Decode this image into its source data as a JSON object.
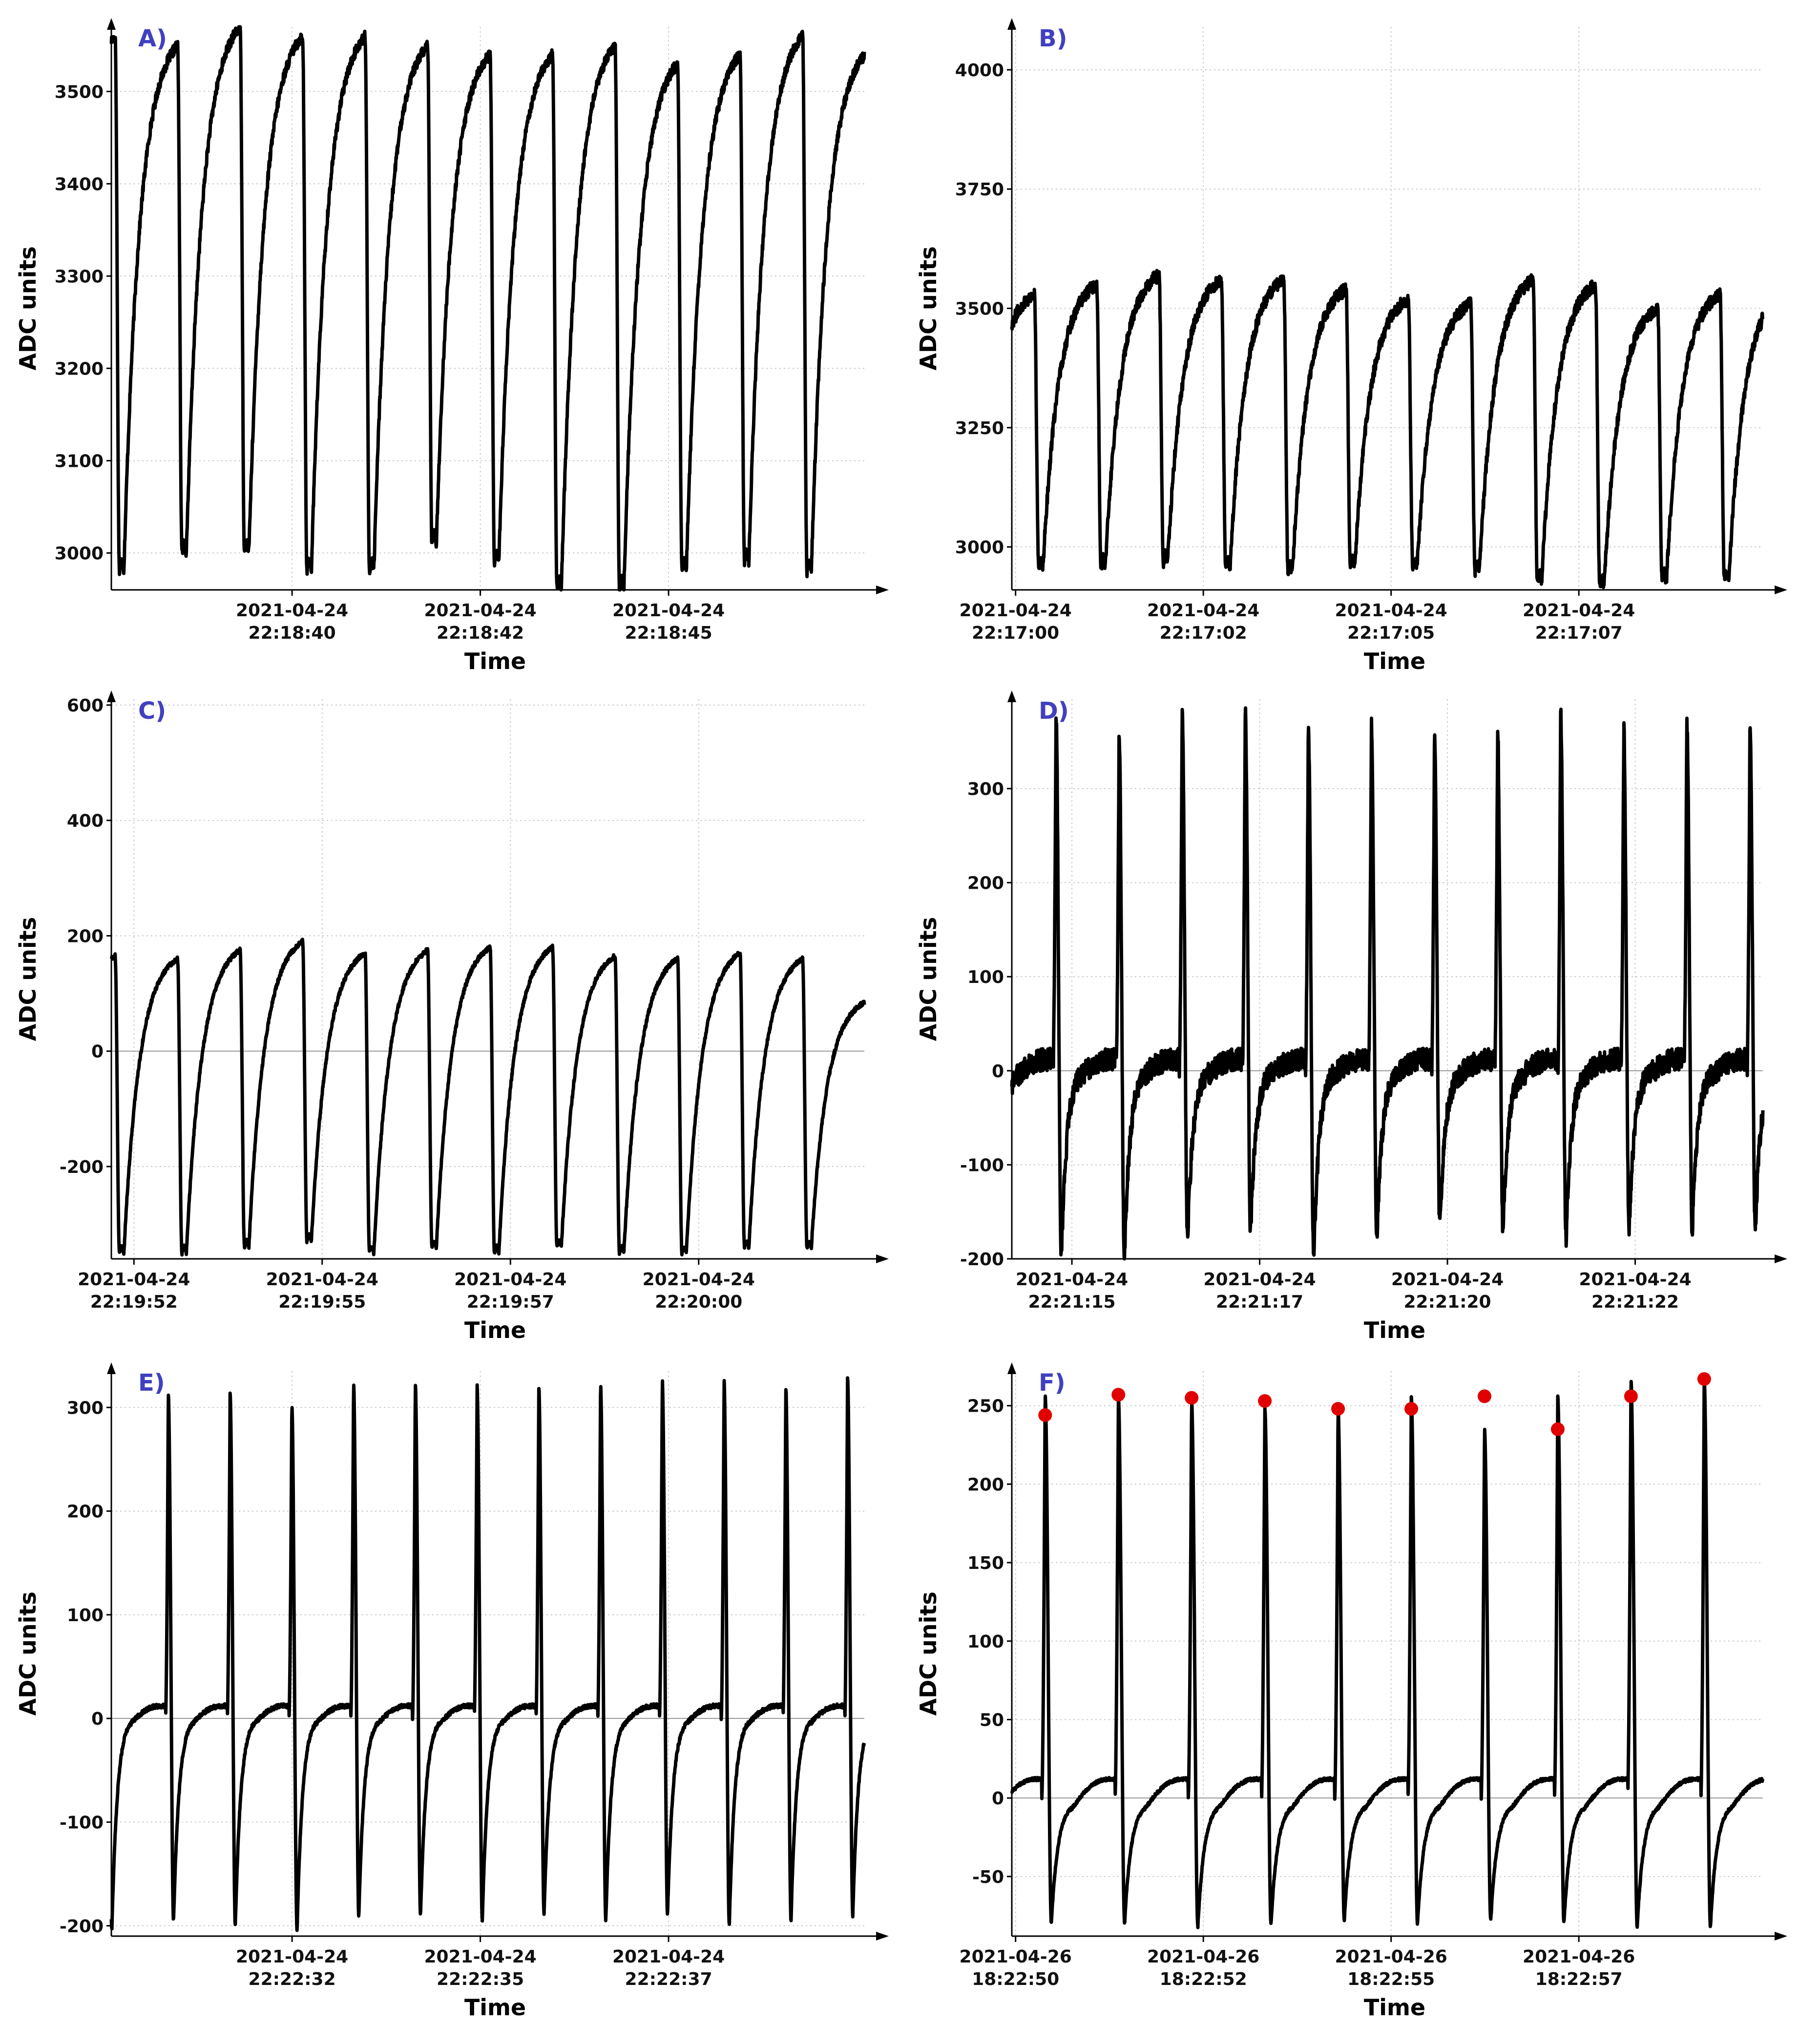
{
  "figure": {
    "background": "#ffffff"
  },
  "style": {
    "line_color": "#000000",
    "grid_color": "#c8c8c8",
    "zero_line_color": "#9a9a9a",
    "axis_color": "#000000",
    "letter_color": "#4040c0",
    "peak_marker_color": "#e00000"
  },
  "chart_data": [
    {
      "id": "A",
      "type": "line",
      "panel_label": "A)",
      "xlabel": "Time",
      "ylabel": "ADC units",
      "ylim": [
        2960,
        3570
      ],
      "xlim": [
        0,
        10.0
      ],
      "yticks": [
        3000,
        3100,
        3200,
        3300,
        3400,
        3500
      ],
      "xticks": [
        {
          "x": 2.4,
          "date": "2021-04-24",
          "time": "22:18:40"
        },
        {
          "x": 4.9,
          "date": "2021-04-24",
          "time": "22:18:42"
        },
        {
          "x": 7.4,
          "date": "2021-04-24",
          "time": "22:18:45"
        }
      ],
      "waveform": "sawtooth",
      "period": 0.83,
      "phase": 0.05,
      "noise": 6,
      "peaks": [
        3560,
        3550,
        3570,
        3560,
        3560,
        3550,
        3540,
        3540,
        3550,
        3530,
        3540,
        3560,
        3540
      ],
      "troughs": [
        2990,
        2980,
        3000,
        3000,
        2980,
        2980,
        3010,
        2990,
        2960,
        2960,
        2980,
        2990,
        2980
      ],
      "zero_line": false
    },
    {
      "id": "B",
      "type": "line",
      "panel_label": "B)",
      "xlabel": "Time",
      "ylabel": "ADC units",
      "ylim": [
        2910,
        4090
      ],
      "xlim": [
        0,
        10.0
      ],
      "yticks": [
        3000,
        3250,
        3500,
        3750,
        4000
      ],
      "xticks": [
        {
          "x": 0.05,
          "date": "2021-04-24",
          "time": "22:17:00"
        },
        {
          "x": 2.55,
          "date": "2021-04-24",
          "time": "22:17:02"
        },
        {
          "x": 5.05,
          "date": "2021-04-24",
          "time": "22:17:05"
        },
        {
          "x": 7.55,
          "date": "2021-04-24",
          "time": "22:17:07"
        }
      ],
      "waveform": "sawtooth",
      "period": 0.83,
      "phase": 0.3,
      "noise": 14,
      "peaks": [
        3530,
        3550,
        3570,
        3560,
        3560,
        3540,
        3520,
        3510,
        3560,
        3550,
        3500,
        3530
      ],
      "troughs": [
        2950,
        2960,
        2960,
        2970,
        2960,
        2950,
        2960,
        2960,
        2950,
        2930,
        2920,
        2930
      ],
      "zero_line": false
    },
    {
      "id": "C",
      "type": "line",
      "panel_label": "C)",
      "xlabel": "Time",
      "ylabel": "ADC units",
      "ylim": [
        -360,
        610
      ],
      "xlim": [
        0,
        10.0
      ],
      "yticks": [
        -200,
        0,
        200,
        400,
        600
      ],
      "xticks": [
        {
          "x": 0.3,
          "date": "2021-04-24",
          "time": "22:19:52"
        },
        {
          "x": 2.8,
          "date": "2021-04-24",
          "time": "22:19:55"
        },
        {
          "x": 5.3,
          "date": "2021-04-24",
          "time": "22:19:57"
        },
        {
          "x": 7.8,
          "date": "2021-04-24",
          "time": "22:20:00"
        }
      ],
      "waveform": "sawtooth",
      "period": 0.83,
      "phase": 0.05,
      "noise": 4,
      "peaks": [
        165,
        160,
        175,
        190,
        170,
        175,
        180,
        180,
        165,
        160,
        170,
        160,
        85
      ],
      "troughs": [
        -330,
        -350,
        -350,
        -340,
        -330,
        -350,
        -340,
        -350,
        -340,
        -350,
        -350,
        -340,
        -340
      ],
      "zero_line": true
    },
    {
      "id": "D",
      "type": "line",
      "panel_label": "D)",
      "xlabel": "Time",
      "ylabel": "ADC units",
      "ylim": [
        -200,
        395
      ],
      "xlim": [
        0,
        10.0
      ],
      "yticks": [
        -200,
        -100,
        0,
        100,
        200,
        300
      ],
      "xticks": [
        {
          "x": 0.8,
          "date": "2021-04-24",
          "time": "22:21:15"
        },
        {
          "x": 3.3,
          "date": "2021-04-24",
          "time": "22:21:17"
        },
        {
          "x": 5.8,
          "date": "2021-04-24",
          "time": "22:21:20"
        },
        {
          "x": 8.3,
          "date": "2021-04-24",
          "time": "22:21:22"
        }
      ],
      "waveform": "spike",
      "period": 0.84,
      "phase": 0.55,
      "noise": 12,
      "peaks": [
        390,
        380,
        360,
        385,
        385,
        370,
        370,
        360,
        360,
        380,
        360,
        375
      ],
      "troughs": [
        -180,
        -200,
        -200,
        -180,
        -170,
        -200,
        -180,
        -170,
        -170,
        -180,
        -170,
        -170
      ],
      "zero_line": true
    },
    {
      "id": "E",
      "type": "line",
      "panel_label": "E)",
      "xlabel": "Time",
      "ylabel": "ADC units",
      "ylim": [
        -210,
        335
      ],
      "xlim": [
        0,
        10.0
      ],
      "yticks": [
        -200,
        -100,
        0,
        100,
        200,
        300
      ],
      "xticks": [
        {
          "x": 2.4,
          "date": "2021-04-24",
          "time": "22:22:32"
        },
        {
          "x": 4.9,
          "date": "2021-04-24",
          "time": "22:22:35"
        },
        {
          "x": 7.4,
          "date": "2021-04-24",
          "time": "22:22:37"
        }
      ],
      "waveform": "spike",
      "period": 0.82,
      "phase": 0.72,
      "noise": 2,
      "peaks": [
        305,
        312,
        315,
        302,
        322,
        322,
        320,
        320,
        322,
        325,
        326,
        318,
        328
      ],
      "troughs": [
        -205,
        -195,
        -200,
        -205,
        -190,
        -190,
        -195,
        -190,
        -195,
        -190,
        -200,
        -195,
        -190
      ],
      "zero_line": true
    },
    {
      "id": "F",
      "type": "line",
      "panel_label": "F)",
      "xlabel": "Time",
      "ylabel": "ADC units",
      "ylim": [
        -88,
        272
      ],
      "xlim": [
        0,
        10.0
      ],
      "yticks": [
        -50,
        0,
        50,
        100,
        150,
        200,
        250
      ],
      "xticks": [
        {
          "x": 0.05,
          "date": "2021-04-26",
          "time": "18:22:50"
        },
        {
          "x": 2.55,
          "date": "2021-04-26",
          "time": "18:22:52"
        },
        {
          "x": 5.05,
          "date": "2021-04-26",
          "time": "18:22:55"
        },
        {
          "x": 7.55,
          "date": "2021-04-26",
          "time": "18:22:57"
        }
      ],
      "waveform": "spike",
      "period": 0.975,
      "phase": 0.4,
      "noise": 1,
      "peaks": [
        244,
        257,
        255,
        253,
        248,
        248,
        256,
        235,
        256,
        267
      ],
      "troughs": [
        -82,
        -80,
        -80,
        -82,
        -80,
        -78,
        -80,
        -78,
        -80,
        -82
      ],
      "zero_line": true,
      "peak_markers": [
        244,
        257,
        255,
        253,
        248,
        248,
        256,
        235,
        256,
        267
      ]
    }
  ]
}
